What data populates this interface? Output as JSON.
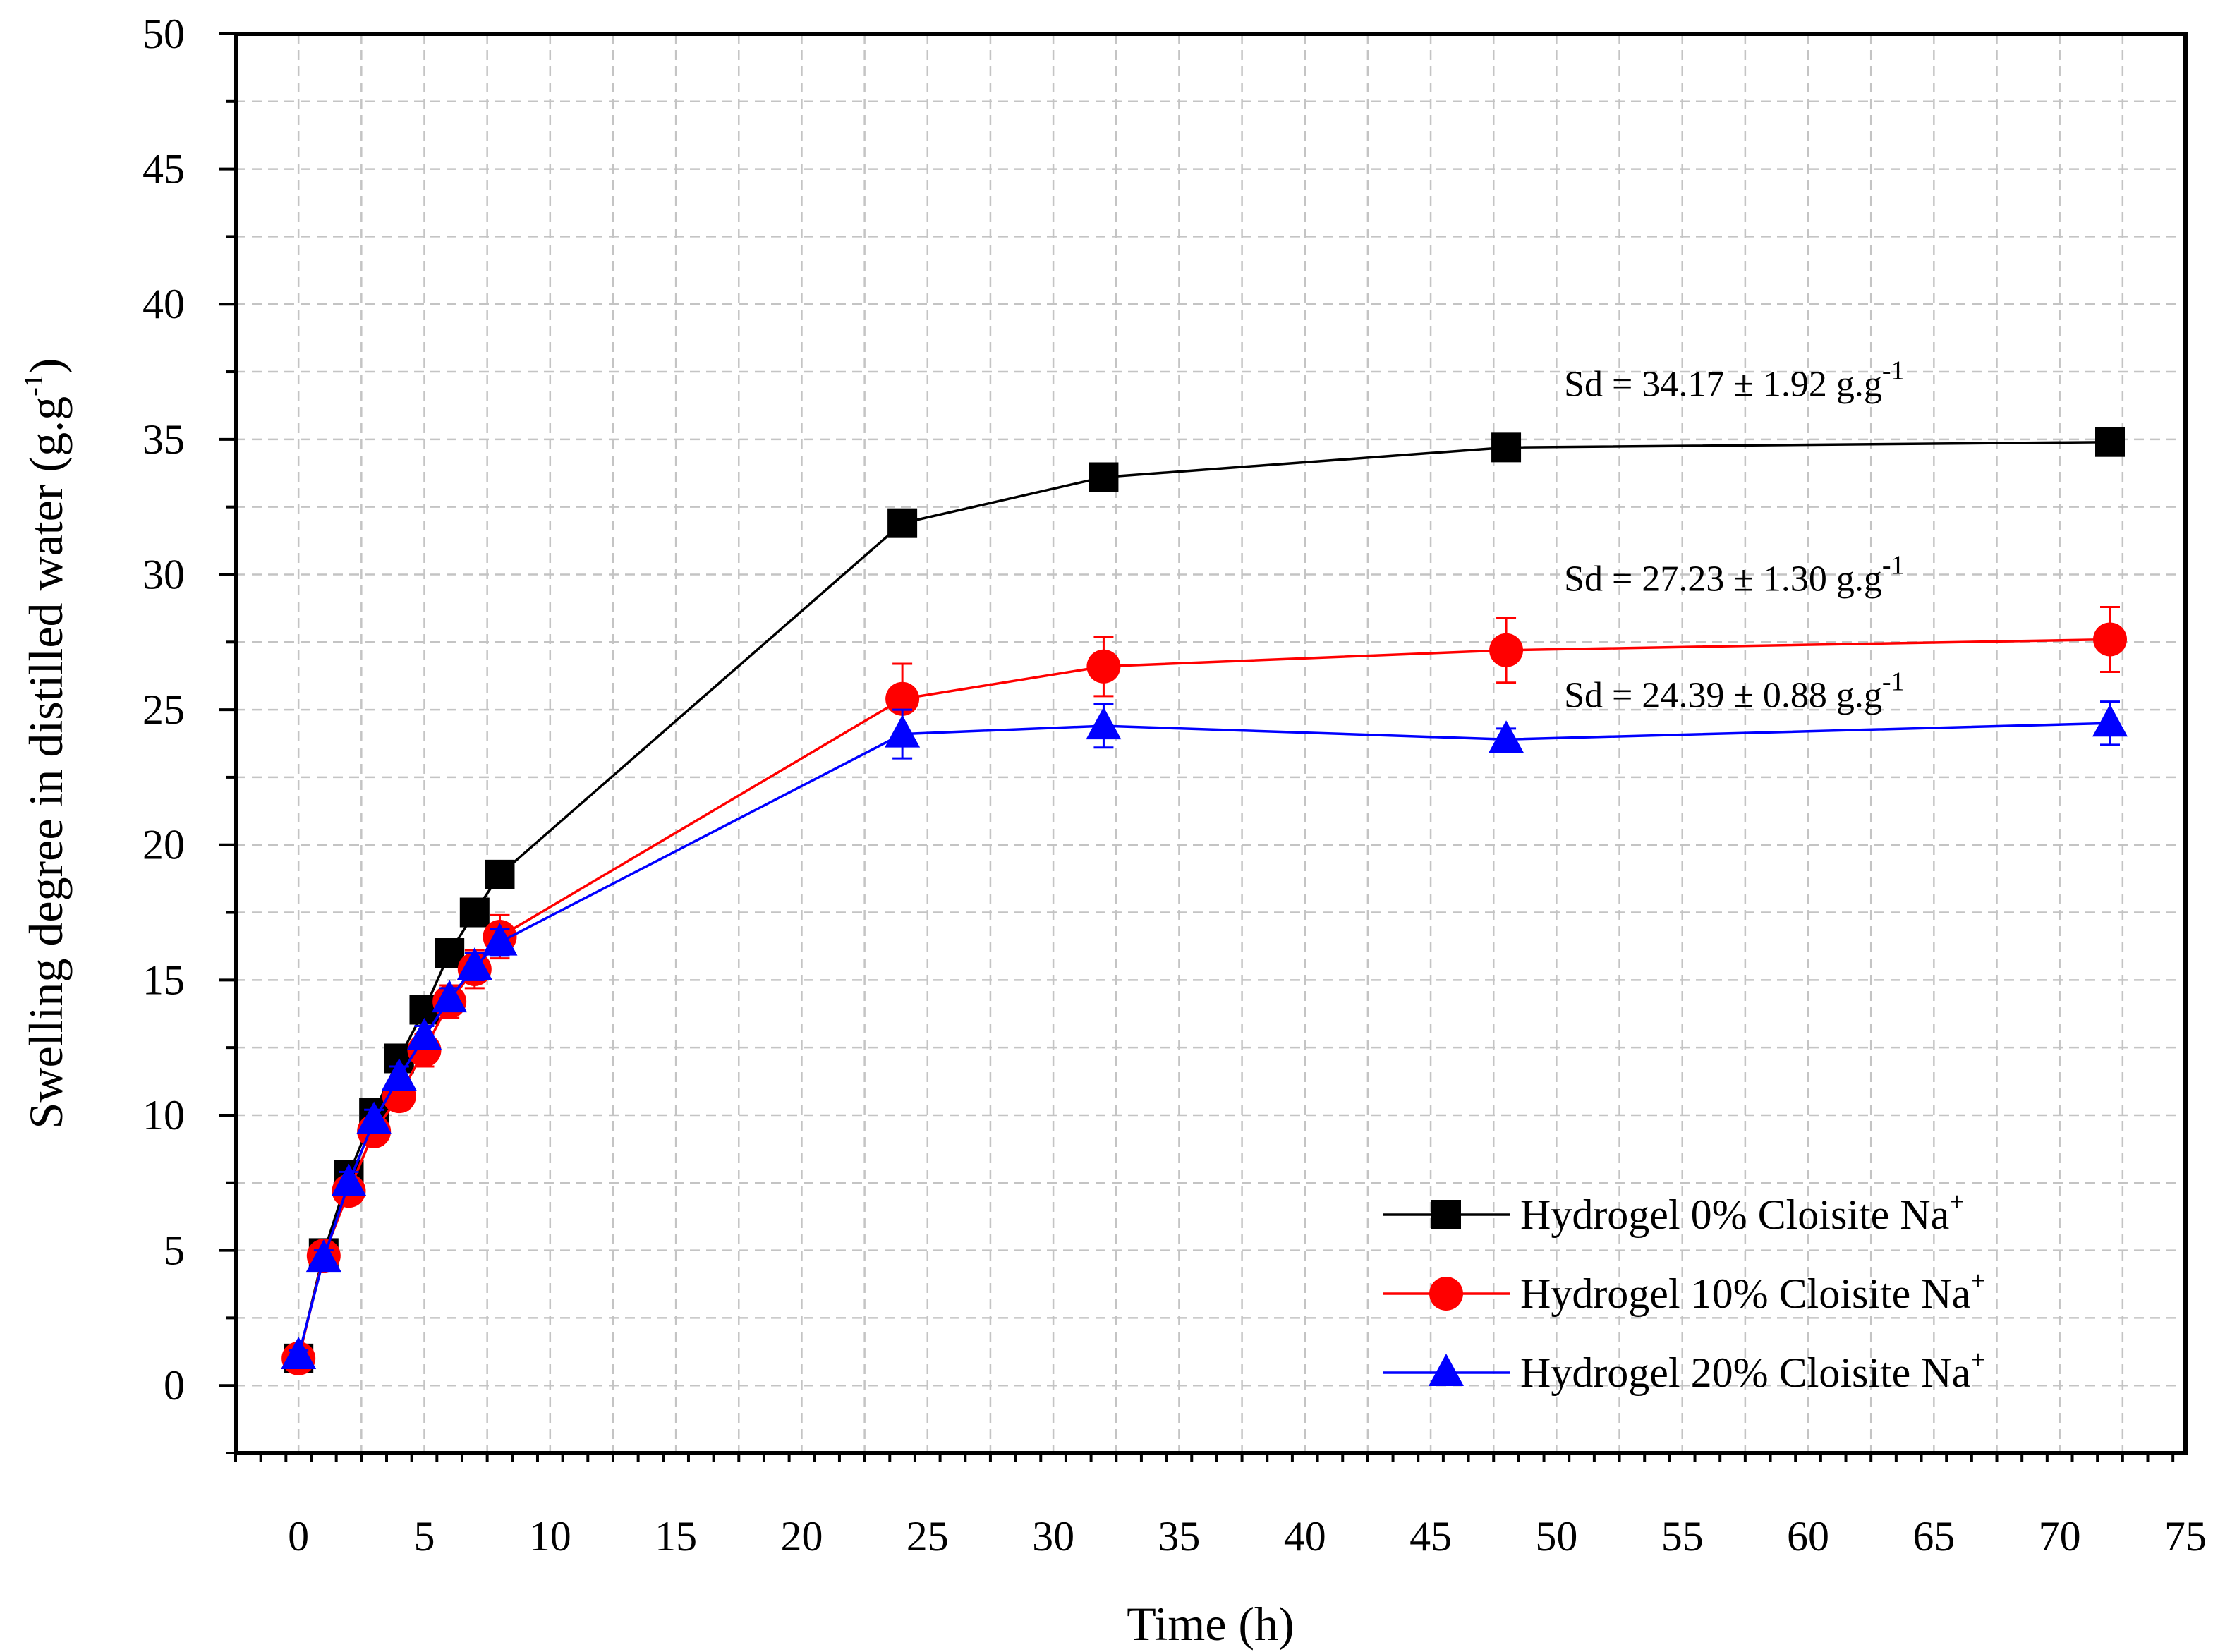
{
  "chart_data": {
    "type": "line",
    "xlabel": "Time (h)",
    "ylabel": "Swelling degree in distilled water (g.g",
    "ylabel_sup": "-1",
    "ylabel_close": ")",
    "xlim": [
      -2.5,
      75
    ],
    "ylim": [
      -2.5,
      50
    ],
    "x_ticks": [
      0,
      5,
      10,
      15,
      20,
      25,
      30,
      35,
      40,
      45,
      50,
      55,
      60,
      65,
      70,
      75
    ],
    "y_ticks": [
      0,
      5,
      10,
      15,
      20,
      25,
      30,
      35,
      40,
      45,
      50
    ],
    "grid": true,
    "legend_position": "bottom-right",
    "x": [
      0,
      1,
      2,
      3,
      4,
      5,
      6,
      7,
      8,
      24,
      32,
      48,
      72
    ],
    "series": [
      {
        "name": "Hydrogel   0% Cloisite Na",
        "name_sup": "+",
        "color": "#000000",
        "marker": "square",
        "values": [
          1.0,
          4.9,
          7.8,
          10.1,
          12.1,
          13.9,
          16.0,
          17.5,
          18.9,
          31.9,
          33.6,
          34.7,
          34.9
        ],
        "errors": [
          0.2,
          0.3,
          0.3,
          0.3,
          0.3,
          0.3,
          0.3,
          0.3,
          0.3,
          0.4,
          0.4,
          0.4,
          0.4
        ]
      },
      {
        "name": "Hydrogel 10% Cloisite Na",
        "name_sup": "+",
        "color": "#ff0000",
        "marker": "circle",
        "values": [
          1.0,
          4.8,
          7.2,
          9.4,
          10.7,
          12.4,
          14.2,
          15.4,
          16.6,
          25.4,
          26.6,
          27.2,
          27.6
        ],
        "errors": [
          0.3,
          0.4,
          0.4,
          0.5,
          0.5,
          0.6,
          0.6,
          0.7,
          0.8,
          1.3,
          1.1,
          1.2,
          1.2
        ]
      },
      {
        "name": "Hydrogel 20% Cloisite Na",
        "name_sup": "+",
        "color": "#0000ff",
        "marker": "triangle",
        "values": [
          1.1,
          4.7,
          7.5,
          9.8,
          11.4,
          12.9,
          14.3,
          15.5,
          16.4,
          24.1,
          24.4,
          23.9,
          24.5
        ],
        "errors": [
          0.2,
          0.3,
          0.4,
          0.4,
          0.4,
          0.4,
          0.4,
          0.5,
          0.5,
          0.9,
          0.8,
          0.4,
          0.8
        ]
      }
    ],
    "annotations": [
      {
        "text": "Sd = 34.17 ",
        "pm": "±",
        "value": " 1.92 g.g",
        "sup": "-1",
        "x": 50.3,
        "y": 36.6
      },
      {
        "text": "Sd = 27.23 ",
        "pm": "±",
        "value": " 1.30 g.g",
        "sup": "-1",
        "x": 50.3,
        "y": 29.4
      },
      {
        "text": "Sd = 24.39 ",
        "pm": "±",
        "value": " 0.88 g.g",
        "sup": "-1",
        "x": 50.3,
        "y": 25.1
      }
    ]
  }
}
